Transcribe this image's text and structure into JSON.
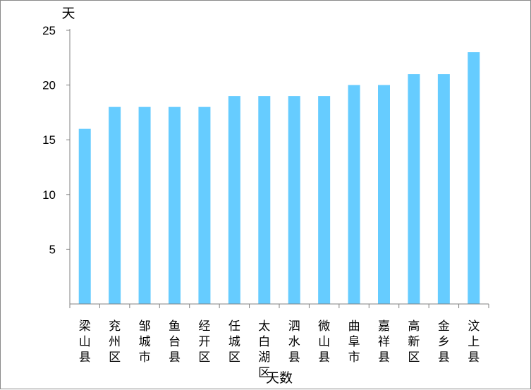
{
  "chart_data": {
    "type": "bar",
    "ylabel": "天",
    "xlabel": "天数",
    "ylim": [
      0,
      25
    ],
    "yticks": [
      5,
      10,
      15,
      20,
      25
    ],
    "grid": false,
    "legend": "none",
    "bar_color": "#66CCFF",
    "categories": [
      "梁山县",
      "兖州区",
      "邹城市",
      "鱼台县",
      "经开区",
      "任城区",
      "太白湖区",
      "泗水县",
      "微山县",
      "曲阜市",
      "嘉祥县",
      "高新区",
      "金乡县",
      "汶上县"
    ],
    "values": [
      16,
      18,
      18,
      18,
      18,
      19,
      19,
      19,
      19,
      20,
      20,
      21,
      21,
      23
    ]
  }
}
